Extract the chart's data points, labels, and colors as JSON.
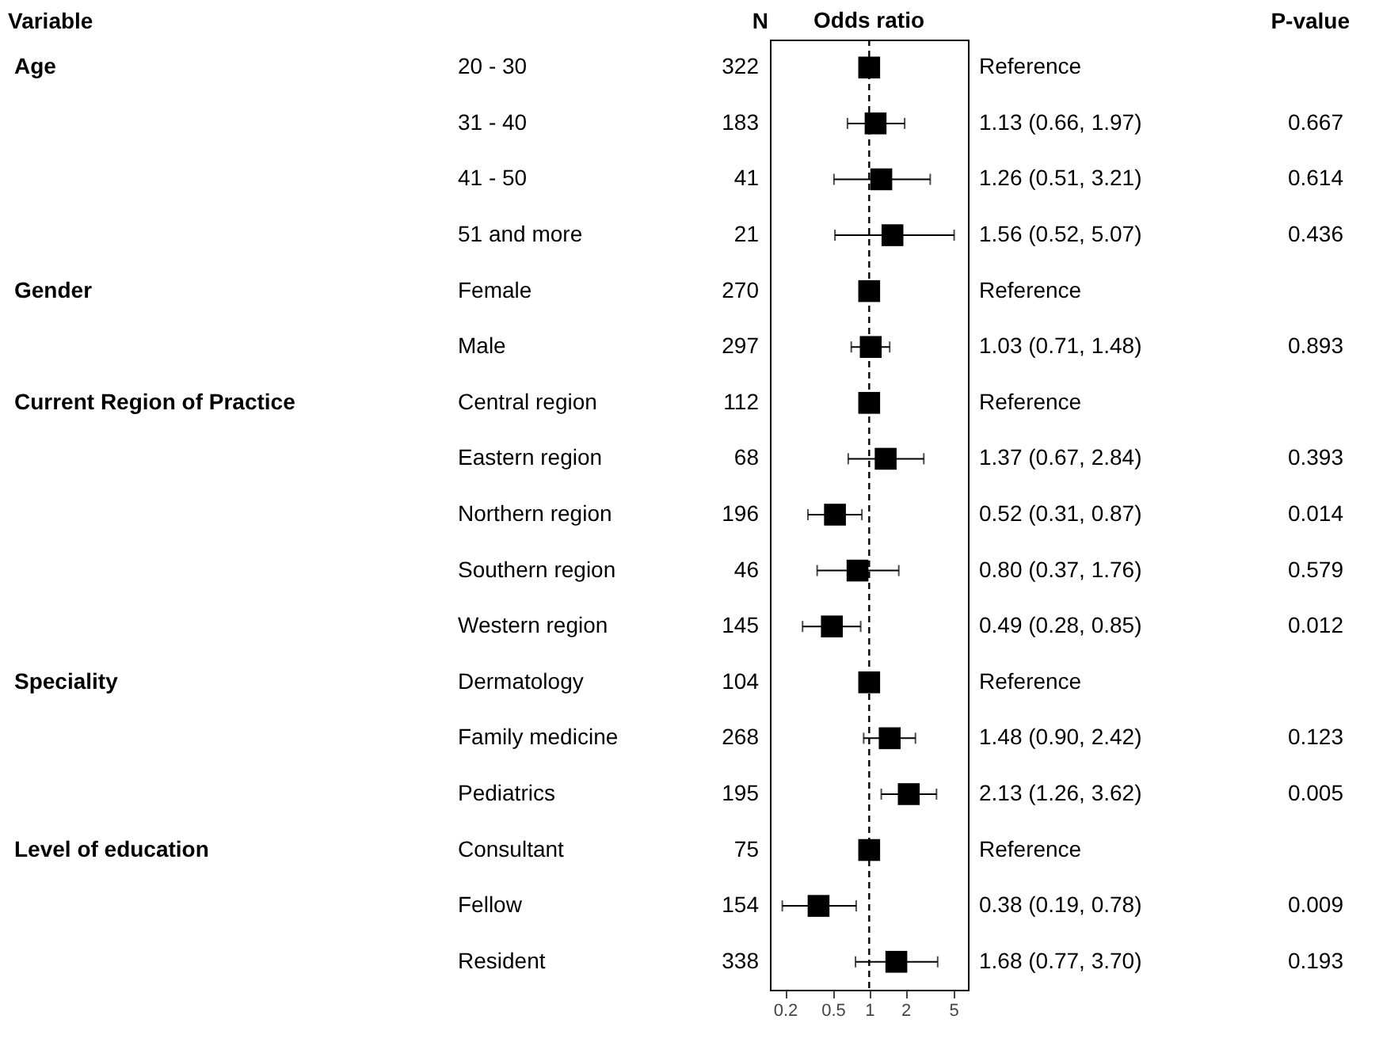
{
  "chart_data": [
    {
      "type": "other",
      "title": "Variable",
      "categories": [
        "Age",
        null,
        null,
        null,
        "Gender",
        null,
        "Current Region of Practice",
        null,
        null,
        null,
        null,
        "Speciality",
        null,
        null,
        "Level of education",
        null,
        null
      ]
    },
    {
      "type": "other",
      "title": "N",
      "data_labels": true,
      "categories": [
        "20 - 30",
        "31 - 40",
        "41 - 50",
        "51 and more",
        "Female",
        "Male",
        "Central region",
        "Eastern region",
        "Northern region",
        "Southern region",
        "Western region",
        "Dermatology",
        "Family medicine",
        "Pediatrics",
        "Consultant",
        "Fellow",
        "Resident"
      ],
      "values": [
        322,
        183,
        41,
        21,
        270,
        297,
        112,
        68,
        196,
        46,
        145,
        104,
        268,
        195,
        75,
        154,
        338
      ]
    },
    {
      "type": "scatter",
      "title": "Odds ratio",
      "orientation": "horizontal",
      "log": "x",
      "tick_labels": "x",
      "marker": "square",
      "categories": [
        null,
        null,
        null,
        null,
        null,
        null,
        null,
        null,
        null,
        null,
        null,
        null,
        null,
        null,
        null,
        null,
        null
      ],
      "color": "#000000",
      "values": [
        1,
        1.13,
        1.26,
        1.56,
        1,
        1.03,
        1,
        1.37,
        0.52,
        0.8,
        0.49,
        1,
        1.48,
        2.13,
        1,
        0.38,
        1.68
      ],
      "errors": [
        null,
        [
          0.66,
          1.97
        ],
        [
          0.51,
          3.21
        ],
        [
          0.52,
          5.07
        ],
        null,
        [
          0.71,
          1.48
        ],
        null,
        [
          0.67,
          2.84
        ],
        [
          0.31,
          0.87
        ],
        [
          0.37,
          1.76
        ],
        [
          0.28,
          0.85
        ],
        null,
        [
          0.9,
          2.42
        ],
        [
          1.26,
          3.62
        ],
        null,
        [
          0.19,
          0.78
        ],
        [
          0.77,
          3.7
        ]
      ],
      "xlim": [
        0.15,
        6.6
      ],
      "xticks": [
        0.2,
        0.5,
        1,
        2,
        5
      ],
      "ref_lines": [
        {
          "axis": "x",
          "value": 1,
          "line_style": "dashed",
          "color": "#000000"
        }
      ]
    },
    {
      "type": "other",
      "title": "P-value",
      "data_labels": true,
      "categories": [
        "Reference",
        "1.13 (0.66, 1.97)",
        "1.26 (0.51, 3.21)",
        "1.56 (0.52, 5.07)",
        "Reference",
        "1.03 (0.71, 1.48)",
        "Reference",
        "1.37 (0.67, 2.84)",
        "0.52 (0.31, 0.87)",
        "0.80 (0.37, 1.76)",
        "0.49 (0.28, 0.85)",
        "Reference",
        "1.48 (0.90, 2.42)",
        "2.13 (1.26, 3.62)",
        "Reference",
        "0.38 (0.19, 0.78)",
        "1.68 (0.77, 3.70)"
      ],
      "values": [
        null,
        0.667,
        0.614,
        0.436,
        null,
        0.893,
        null,
        0.393,
        0.014,
        0.579,
        0.012,
        null,
        0.123,
        0.005,
        null,
        0.009,
        0.193
      ]
    }
  ]
}
